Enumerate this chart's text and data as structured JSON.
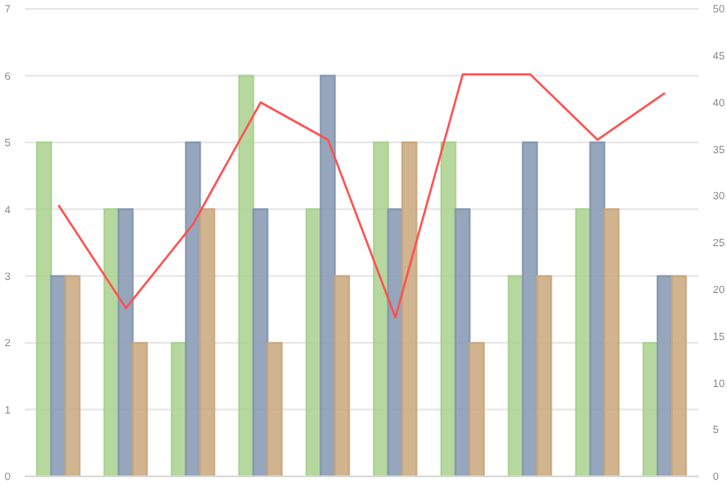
{
  "chart_data": {
    "type": "bar",
    "categories": [
      null,
      null,
      null,
      null,
      null,
      null,
      null,
      null,
      null,
      null
    ],
    "series": [
      {
        "color": "#a9d18e",
        "values": [
          5,
          4,
          2,
          6,
          4,
          5,
          5,
          3,
          4,
          2
        ]
      },
      {
        "color": "#8497b0",
        "values": [
          3,
          4,
          5,
          4,
          6,
          4,
          4,
          5,
          5,
          3
        ]
      },
      {
        "color": "#c9a77c",
        "values": [
          3,
          2,
          4,
          2,
          3,
          5,
          2,
          3,
          4,
          3
        ]
      },
      {
        "type": "line",
        "axis": "y2",
        "color": "#ff5050",
        "values": [
          29,
          18,
          27,
          40,
          36,
          17,
          43,
          43,
          36,
          41
        ]
      }
    ],
    "ylim": [
      0,
      7
    ],
    "yticks": [
      0,
      1,
      2,
      3,
      4,
      5,
      6,
      7
    ],
    "y2lim": [
      0,
      50
    ],
    "y2ticks": [
      0,
      5,
      10,
      15,
      20,
      25,
      30,
      35,
      40,
      45,
      50
    ],
    "grid": "y",
    "tick_labels": "y",
    "legend": false
  }
}
